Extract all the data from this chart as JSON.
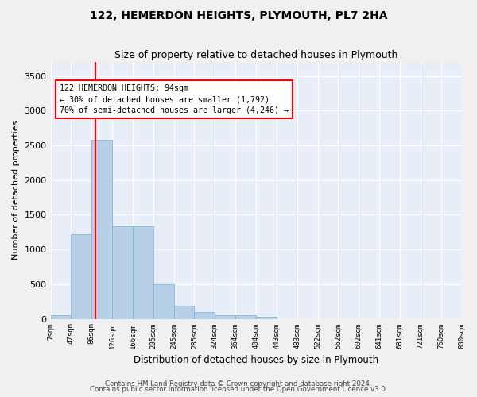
{
  "title": "122, HEMERDON HEIGHTS, PLYMOUTH, PL7 2HA",
  "subtitle": "Size of property relative to detached houses in Plymouth",
  "xlabel": "Distribution of detached houses by size in Plymouth",
  "ylabel": "Number of detached properties",
  "bin_labels": [
    "7sqm",
    "47sqm",
    "86sqm",
    "126sqm",
    "166sqm",
    "205sqm",
    "245sqm",
    "285sqm",
    "324sqm",
    "364sqm",
    "404sqm",
    "443sqm",
    "483sqm",
    "522sqm",
    "562sqm",
    "602sqm",
    "641sqm",
    "681sqm",
    "721sqm",
    "760sqm",
    "800sqm"
  ],
  "bar_values": [
    50,
    1220,
    2580,
    1330,
    1330,
    500,
    190,
    100,
    50,
    50,
    30,
    0,
    0,
    0,
    0,
    0,
    0,
    0,
    0,
    0
  ],
  "bar_color": "#b8cfe8",
  "bar_edgecolor": "#7aadd4",
  "background_color": "#e8eef8",
  "grid_color": "#ffffff",
  "red_line_x": 2.2,
  "annotation_text": "122 HEMERDON HEIGHTS: 94sqm\n← 30% of detached houses are smaller (1,792)\n70% of semi-detached houses are larger (4,246) →",
  "ylim": [
    0,
    3700
  ],
  "yticks": [
    0,
    500,
    1000,
    1500,
    2000,
    2500,
    3000,
    3500
  ],
  "footer1": "Contains HM Land Registry data © Crown copyright and database right 2024.",
  "footer2": "Contains public sector information licensed under the Open Government Licence v3.0."
}
